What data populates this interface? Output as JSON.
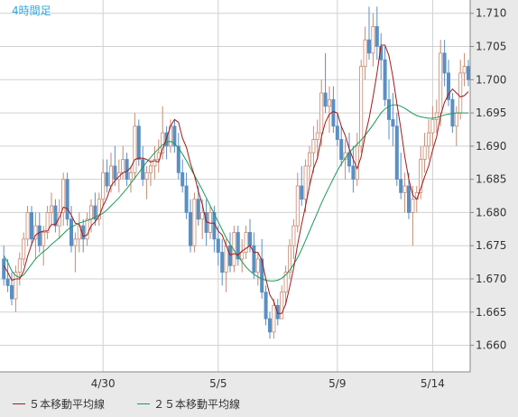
{
  "colors": {
    "up": "#c58a73",
    "down": "#5a8fc2",
    "ma5": "#a01a1a",
    "ma25": "#1a9a5a",
    "grid": "#d0d0d0",
    "label": "#2ea7e0",
    "axis_text": "#333333"
  },
  "chart_data": {
    "type": "candlestick",
    "title": "4時間足",
    "ylim": [
      1.656,
      1.712
    ],
    "yticks": [
      "1.710",
      "1.705",
      "1.700",
      "1.695",
      "1.690",
      "1.685",
      "1.680",
      "1.675",
      "1.670",
      "1.665",
      "1.660"
    ],
    "xticks": [
      {
        "label": "4/30",
        "index": 25
      },
      {
        "label": "5/5",
        "index": 54
      },
      {
        "label": "5/9",
        "index": 84
      },
      {
        "label": "5/14",
        "index": 108
      }
    ],
    "legend": [
      {
        "name": "５本移動平均線",
        "color": "#a01a1a"
      },
      {
        "name": "２５本移動平均線",
        "color": "#1a9a5a"
      }
    ],
    "candles": [
      [
        1.673,
        1.675,
        1.669,
        1.67
      ],
      [
        1.67,
        1.673,
        1.668,
        1.669
      ],
      [
        1.669,
        1.671,
        1.666,
        1.667
      ],
      [
        1.667,
        1.672,
        1.665,
        1.671
      ],
      [
        1.671,
        1.674,
        1.669,
        1.673
      ],
      [
        1.673,
        1.677,
        1.672,
        1.676
      ],
      [
        1.676,
        1.681,
        1.675,
        1.68
      ],
      [
        1.68,
        1.681,
        1.675,
        1.676
      ],
      [
        1.676,
        1.68,
        1.673,
        1.678
      ],
      [
        1.678,
        1.68,
        1.674,
        1.675
      ],
      [
        1.675,
        1.678,
        1.672,
        1.677
      ],
      [
        1.677,
        1.681,
        1.676,
        1.68
      ],
      [
        1.68,
        1.683,
        1.678,
        1.681
      ],
      [
        1.681,
        1.682,
        1.677,
        1.678
      ],
      [
        1.678,
        1.682,
        1.676,
        1.68
      ],
      [
        1.68,
        1.686,
        1.678,
        1.685
      ],
      [
        1.685,
        1.686,
        1.678,
        1.679
      ],
      [
        1.679,
        1.681,
        1.674,
        1.675
      ],
      [
        1.675,
        1.677,
        1.671,
        1.676
      ],
      [
        1.676,
        1.68,
        1.674,
        1.678
      ],
      [
        1.678,
        1.679,
        1.674,
        1.676
      ],
      [
        1.676,
        1.68,
        1.675,
        1.679
      ],
      [
        1.679,
        1.682,
        1.677,
        1.681
      ],
      [
        1.681,
        1.683,
        1.678,
        1.679
      ],
      [
        1.679,
        1.683,
        1.678,
        1.682
      ],
      [
        1.682,
        1.688,
        1.681,
        1.686
      ],
      [
        1.686,
        1.688,
        1.683,
        1.684
      ],
      [
        1.684,
        1.689,
        1.683,
        1.687
      ],
      [
        1.687,
        1.69,
        1.684,
        1.685
      ],
      [
        1.685,
        1.688,
        1.683,
        1.686
      ],
      [
        1.686,
        1.69,
        1.685,
        1.688
      ],
      [
        1.688,
        1.689,
        1.684,
        1.685
      ],
      [
        1.685,
        1.687,
        1.683,
        1.686
      ],
      [
        1.686,
        1.695,
        1.685,
        1.693
      ],
      [
        1.693,
        1.694,
        1.687,
        1.688
      ],
      [
        1.688,
        1.69,
        1.684,
        1.685
      ],
      [
        1.685,
        1.687,
        1.682,
        1.686
      ],
      [
        1.686,
        1.688,
        1.684,
        1.687
      ],
      [
        1.687,
        1.69,
        1.685,
        1.688
      ],
      [
        1.688,
        1.691,
        1.686,
        1.689
      ],
      [
        1.689,
        1.696,
        1.688,
        1.692
      ],
      [
        1.692,
        1.693,
        1.688,
        1.69
      ],
      [
        1.69,
        1.694,
        1.689,
        1.693
      ],
      [
        1.693,
        1.694,
        1.689,
        1.69
      ],
      [
        1.69,
        1.692,
        1.685,
        1.686
      ],
      [
        1.686,
        1.688,
        1.683,
        1.684
      ],
      [
        1.684,
        1.686,
        1.679,
        1.68
      ],
      [
        1.68,
        1.682,
        1.674,
        1.675
      ],
      [
        1.675,
        1.683,
        1.674,
        1.682
      ],
      [
        1.682,
        1.684,
        1.678,
        1.679
      ],
      [
        1.679,
        1.682,
        1.676,
        1.68
      ],
      [
        1.68,
        1.682,
        1.675,
        1.677
      ],
      [
        1.677,
        1.681,
        1.676,
        1.68
      ],
      [
        1.68,
        1.681,
        1.674,
        1.676
      ],
      [
        1.676,
        1.678,
        1.672,
        1.674
      ],
      [
        1.674,
        1.676,
        1.669,
        1.671
      ],
      [
        1.671,
        1.676,
        1.668,
        1.675
      ],
      [
        1.675,
        1.677,
        1.671,
        1.672
      ],
      [
        1.672,
        1.678,
        1.671,
        1.677
      ],
      [
        1.677,
        1.678,
        1.672,
        1.673
      ],
      [
        1.673,
        1.676,
        1.671,
        1.674
      ],
      [
        1.674,
        1.678,
        1.673,
        1.677
      ],
      [
        1.677,
        1.679,
        1.674,
        1.675
      ],
      [
        1.675,
        1.677,
        1.67,
        1.671
      ],
      [
        1.671,
        1.674,
        1.669,
        1.673
      ],
      [
        1.673,
        1.676,
        1.667,
        1.668
      ],
      [
        1.668,
        1.669,
        1.663,
        1.664
      ],
      [
        1.664,
        1.665,
        1.661,
        1.662
      ],
      [
        1.662,
        1.667,
        1.661,
        1.666
      ],
      [
        1.666,
        1.667,
        1.663,
        1.664
      ],
      [
        1.664,
        1.669,
        1.664,
        1.668
      ],
      [
        1.668,
        1.672,
        1.666,
        1.671
      ],
      [
        1.671,
        1.676,
        1.67,
        1.675
      ],
      [
        1.675,
        1.679,
        1.673,
        1.678
      ],
      [
        1.678,
        1.686,
        1.677,
        1.684
      ],
      [
        1.684,
        1.687,
        1.681,
        1.682
      ],
      [
        1.682,
        1.688,
        1.68,
        1.687
      ],
      [
        1.687,
        1.69,
        1.684,
        1.689
      ],
      [
        1.689,
        1.693,
        1.686,
        1.691
      ],
      [
        1.691,
        1.694,
        1.688,
        1.692
      ],
      [
        1.692,
        1.7,
        1.69,
        1.698
      ],
      [
        1.698,
        1.704,
        1.695,
        1.696
      ],
      [
        1.696,
        1.699,
        1.692,
        1.697
      ],
      [
        1.697,
        1.699,
        1.692,
        1.693
      ],
      [
        1.693,
        1.695,
        1.69,
        1.691
      ],
      [
        1.691,
        1.693,
        1.687,
        1.688
      ],
      [
        1.688,
        1.691,
        1.685,
        1.689
      ],
      [
        1.689,
        1.692,
        1.686,
        1.687
      ],
      [
        1.687,
        1.69,
        1.683,
        1.685
      ],
      [
        1.685,
        1.692,
        1.684,
        1.69
      ],
      [
        1.69,
        1.703,
        1.689,
        1.702
      ],
      [
        1.702,
        1.708,
        1.7,
        1.706
      ],
      [
        1.706,
        1.711,
        1.703,
        1.704
      ],
      [
        1.704,
        1.71,
        1.702,
        1.708
      ],
      [
        1.708,
        1.711,
        1.703,
        1.705
      ],
      [
        1.705,
        1.707,
        1.7,
        1.703
      ],
      [
        1.703,
        1.705,
        1.696,
        1.697
      ],
      [
        1.697,
        1.7,
        1.691,
        1.694
      ],
      [
        1.694,
        1.698,
        1.69,
        1.693
      ],
      [
        1.693,
        1.695,
        1.684,
        1.685
      ],
      [
        1.685,
        1.689,
        1.682,
        1.683
      ],
      [
        1.683,
        1.686,
        1.68,
        1.684
      ],
      [
        1.684,
        1.686,
        1.679,
        1.68
      ],
      [
        1.68,
        1.684,
        1.675,
        1.682
      ],
      [
        1.682,
        1.684,
        1.68,
        1.683
      ],
      [
        1.683,
        1.69,
        1.682,
        1.688
      ],
      [
        1.688,
        1.692,
        1.686,
        1.69
      ],
      [
        1.69,
        1.694,
        1.688,
        1.692
      ],
      [
        1.692,
        1.696,
        1.69,
        1.694
      ],
      [
        1.694,
        1.697,
        1.692,
        1.695
      ],
      [
        1.695,
        1.706,
        1.693,
        1.704
      ],
      [
        1.704,
        1.706,
        1.699,
        1.701
      ],
      [
        1.701,
        1.703,
        1.696,
        1.697
      ],
      [
        1.697,
        1.698,
        1.692,
        1.693
      ],
      [
        1.693,
        1.696,
        1.69,
        1.695
      ],
      [
        1.695,
        1.703,
        1.694,
        1.701
      ],
      [
        1.701,
        1.704,
        1.699,
        1.702
      ],
      [
        1.702,
        1.703,
        1.699,
        1.7
      ]
    ],
    "ma5": [
      1.672,
      1.671,
      1.6698,
      1.67,
      1.67,
      1.6712,
      1.6734,
      1.6752,
      1.6766,
      1.677,
      1.6772,
      1.6772,
      1.6782,
      1.6782,
      1.6792,
      1.6808,
      1.6806,
      1.6796,
      1.6784,
      1.6782,
      1.6764,
      1.6766,
      1.678,
      1.6786,
      1.6794,
      1.681,
      1.6822,
      1.684,
      1.6848,
      1.6854,
      1.686,
      1.6862,
      1.6868,
      1.688,
      1.6882,
      1.6882,
      1.688,
      1.6876,
      1.6878,
      1.6876,
      1.6896,
      1.6912,
      1.693,
      1.694,
      1.6936,
      1.6912,
      1.6898,
      1.6874,
      1.6856,
      1.6832,
      1.6812,
      1.6786,
      1.6784,
      1.6784,
      1.6772,
      1.6766,
      1.675,
      1.6736,
      1.6738,
      1.6736,
      1.6742,
      1.6746,
      1.675,
      1.674,
      1.674,
      1.6728,
      1.67,
      1.6676,
      1.6666,
      1.6648,
      1.6648,
      1.6662,
      1.6688,
      1.6716,
      1.6752,
      1.6782,
      1.681,
      1.684,
      1.6866,
      1.6882,
      1.6914,
      1.6936,
      1.6948,
      1.6952,
      1.695,
      1.693,
      1.6916,
      1.6896,
      1.688,
      1.6866,
      1.6884,
      1.6916,
      1.6942,
      1.6974,
      1.701,
      1.7052,
      1.7052,
      1.7036,
      1.7004,
      1.6964,
      1.6926,
      1.6884,
      1.685,
      1.6826,
      1.682,
      1.6836,
      1.6854,
      1.687,
      1.6894,
      1.6914,
      1.6946,
      1.6966,
      1.6978,
      1.6986,
      1.698,
      1.6974,
      1.6976,
      1.6982
    ],
    "ma25": [
      1.6735,
      1.6725,
      1.6712,
      1.6705,
      1.6702,
      1.6706,
      1.6714,
      1.6722,
      1.673,
      1.6736,
      1.6741,
      1.6746,
      1.6752,
      1.6757,
      1.6762,
      1.6768,
      1.6774,
      1.6778,
      1.6781,
      1.6784,
      1.6786,
      1.6788,
      1.679,
      1.6793,
      1.6796,
      1.6799,
      1.6804,
      1.681,
      1.6816,
      1.6822,
      1.6829,
      1.6836,
      1.6844,
      1.6852,
      1.686,
      1.6868,
      1.6876,
      1.6883,
      1.689,
      1.6896,
      1.6902,
      1.6906,
      1.6907,
      1.6904,
      1.6897,
      1.6888,
      1.6878,
      1.6867,
      1.6856,
      1.6845,
      1.6834,
      1.6822,
      1.681,
      1.6798,
      1.6786,
      1.6774,
      1.6762,
      1.6752,
      1.6743,
      1.6734,
      1.6726,
      1.6718,
      1.6712,
      1.6707,
      1.6703,
      1.67,
      1.6698,
      1.6697,
      1.6697,
      1.6698,
      1.6701,
      1.6706,
      1.6713,
      1.6722,
      1.6732,
      1.6744,
      1.6758,
      1.6772,
      1.6786,
      1.68,
      1.6814,
      1.6827,
      1.6839,
      1.6851,
      1.6863,
      1.6873,
      1.6882,
      1.689,
      1.6897,
      1.6903,
      1.6909,
      1.6916,
      1.6924,
      1.6932,
      1.6941,
      1.695,
      1.6956,
      1.696,
      1.6962,
      1.6962,
      1.696,
      1.6957,
      1.6953,
      1.6949,
      1.6946,
      1.6944,
      1.6943,
      1.6942,
      1.6942,
      1.6943,
      1.6945,
      1.6947,
      1.6948,
      1.6949,
      1.695,
      1.695,
      1.695,
      1.695
    ]
  }
}
